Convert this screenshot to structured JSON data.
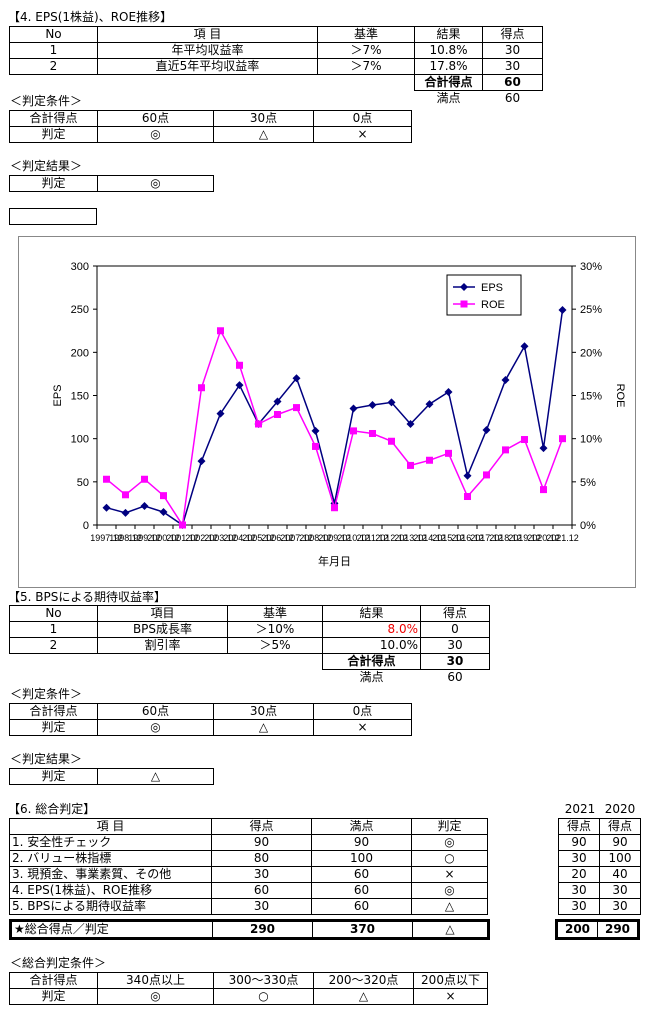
{
  "s4": {
    "title": "【4. EPS(1株益)、ROE推移】",
    "headers": [
      "No",
      "項 目",
      "基準",
      "結果",
      "得点"
    ],
    "rows": [
      {
        "no": "1",
        "item": "年平均収益率",
        "std": "＞7%",
        "result": "10.8%",
        "score": "30"
      },
      {
        "no": "2",
        "item": "直近5年平均収益率",
        "std": "＞7%",
        "result": "17.8%",
        "score": "30"
      }
    ],
    "total_label": "合計得点",
    "total": "60",
    "max_label": "満点",
    "max": "60"
  },
  "crit4": {
    "title": "＜判定条件＞",
    "row1": [
      "合計得点",
      "60点",
      "30点",
      "0点"
    ],
    "row2": [
      "判定",
      "◎",
      "△",
      "×"
    ]
  },
  "res4": {
    "title": "＜判定結果＞",
    "label": "判定",
    "value": "◎"
  },
  "chart_data": {
    "type": "line",
    "x": [
      "1997.12",
      "1998.12",
      "1999.12",
      "2000.12",
      "2001.12",
      "2002.12",
      "2003.12",
      "2004.12",
      "2005.12",
      "2006.12",
      "2007.12",
      "2008.12",
      "2009.12",
      "2010.12",
      "2011.12",
      "2012.12",
      "2013.12",
      "2014.12",
      "2015.12",
      "2016.12",
      "2017.12",
      "2018.12",
      "2019.12",
      "2020.12",
      "2021.12"
    ],
    "xlabel": "年月日",
    "ylabel": "EPS",
    "y2label": "ROE",
    "ylim": [
      0,
      300
    ],
    "y2lim": [
      0,
      30
    ],
    "yticks": [
      "0",
      "50",
      "100",
      "150",
      "200",
      "250",
      "300"
    ],
    "y2ticks": [
      "0%",
      "5%",
      "10%",
      "15%",
      "20%",
      "25%",
      "30%"
    ],
    "legend": "top-right",
    "series": [
      {
        "name": "EPS",
        "color": "#000080",
        "axis": "left",
        "values": [
          20,
          14,
          22,
          15,
          0,
          74,
          129,
          162,
          117,
          143,
          170,
          109,
          25,
          135,
          139,
          142,
          117,
          140,
          154,
          57,
          110,
          168,
          207,
          89,
          249
        ]
      },
      {
        "name": "ROE",
        "color": "#ff00ff",
        "axis": "right",
        "values": [
          5.3,
          3.5,
          5.3,
          3.4,
          0,
          15.9,
          22.5,
          18.5,
          11.7,
          12.8,
          13.6,
          9.1,
          2.0,
          10.9,
          10.6,
          9.7,
          6.9,
          7.5,
          8.3,
          3.3,
          5.8,
          8.7,
          9.9,
          4.1,
          10.0
        ]
      }
    ]
  },
  "s5": {
    "title": "【5. BPSによる期待収益率】",
    "headers": [
      "No",
      "項目",
      "基準",
      "結果",
      "得点"
    ],
    "rows": [
      {
        "no": "1",
        "item": "BPS成長率",
        "std": "＞10%",
        "result": "8.0%",
        "score": "0"
      },
      {
        "no": "2",
        "item": "割引率",
        "std": "＞5%",
        "result": "10.0%",
        "score": "30"
      }
    ],
    "total_label": "合計得点",
    "total": "30",
    "max_label": "満点",
    "max": "60"
  },
  "crit5": {
    "title": "＜判定条件＞",
    "row1": [
      "合計得点",
      "60点",
      "30点",
      "0点"
    ],
    "row2": [
      "判定",
      "◎",
      "△",
      "×"
    ]
  },
  "res5": {
    "title": "＜判定結果＞",
    "label": "判定",
    "value": "△"
  },
  "s6": {
    "title": "【6. 総合判定】",
    "headers": [
      "項 目",
      "得点",
      "満点",
      "判定"
    ],
    "rows": [
      {
        "item": "1. 安全性チェック",
        "score": "90",
        "max": "90",
        "judge": "◎"
      },
      {
        "item": "2. バリュー株指標",
        "score": "80",
        "max": "100",
        "judge": "○"
      },
      {
        "item": "3. 現預金、事業素質、その他",
        "score": "30",
        "max": "60",
        "judge": "×"
      },
      {
        "item": "4. EPS(1株益)、ROE推移",
        "score": "60",
        "max": "60",
        "judge": "◎"
      },
      {
        "item": "5. BPSによる期待収益率",
        "score": "30",
        "max": "60",
        "judge": "△"
      }
    ],
    "total": {
      "item": "★総合得点／判定",
      "score": "290",
      "max": "370",
      "judge": "△"
    }
  },
  "hist": {
    "years": [
      "2021",
      "2020"
    ],
    "header": [
      "得点",
      "得点"
    ],
    "rows": [
      [
        "90",
        "90"
      ],
      [
        "30",
        "100"
      ],
      [
        "20",
        "40"
      ],
      [
        "30",
        "30"
      ],
      [
        "30",
        "30"
      ]
    ],
    "total": [
      "200",
      "290"
    ]
  },
  "crit6": {
    "title": "＜総合判定条件＞",
    "row1": [
      "合計得点",
      "340点以上",
      "300～330点",
      "200～320点",
      "200点以下"
    ],
    "row2": [
      "判定",
      "◎",
      "○",
      "△",
      "×"
    ]
  }
}
